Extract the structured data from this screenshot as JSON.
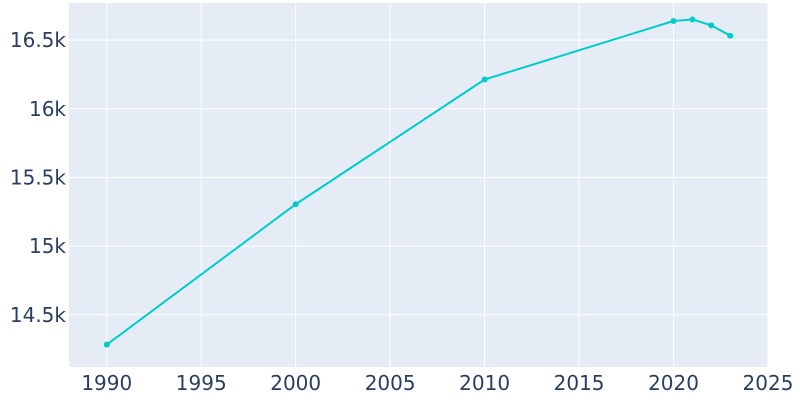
{
  "chart_data": {
    "type": "line",
    "title": "",
    "xlabel": "",
    "ylabel": "",
    "xlim": [
      1988,
      2025
    ],
    "ylim": [
      14120,
      16770
    ],
    "x_ticks": [
      1990,
      1995,
      2000,
      2005,
      2010,
      2015,
      2020,
      2025
    ],
    "x_tick_labels": [
      "1990",
      "1995",
      "2000",
      "2005",
      "2010",
      "2015",
      "2020",
      "2025"
    ],
    "y_ticks": [
      14500,
      15000,
      15500,
      16000,
      16500
    ],
    "y_tick_labels": [
      "14.5k",
      "15k",
      "15.5k",
      "16k",
      "16.5k"
    ],
    "grid": true,
    "series": [
      {
        "x": [
          1990,
          2000,
          2010,
          2020,
          2021,
          2022,
          2023
        ],
        "y": [
          14283,
          15305,
          16213,
          16639,
          16650,
          16607,
          16532
        ]
      }
    ],
    "colors": {
      "line": "#00cccc",
      "plot_bg": "#e5ecf6",
      "grid": "#ffffff",
      "tick_text": "#2a3f5f"
    }
  }
}
